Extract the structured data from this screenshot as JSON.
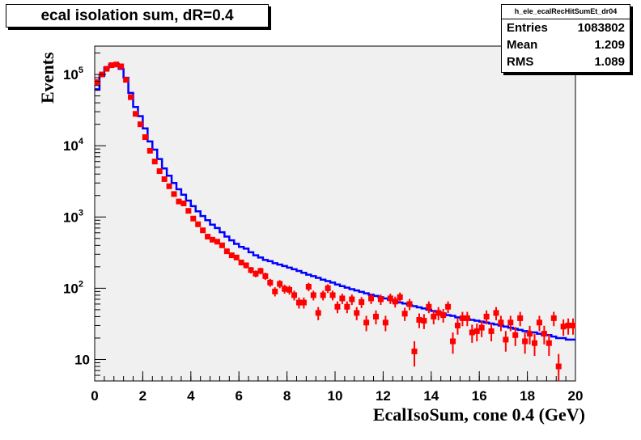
{
  "title": "ecal isolation sum, dR=0.4",
  "stats": {
    "name": "h_ele_ecalRecHitSumEt_dr04",
    "rows": [
      {
        "label": "Entries",
        "value": "1083802"
      },
      {
        "label": "Mean",
        "value": "1.209"
      },
      {
        "label": "RMS",
        "value": "1.089"
      }
    ]
  },
  "colors": {
    "plot_bg": "#f0f0f0",
    "reference": "#0000ff",
    "data": "#ff0000"
  },
  "chart_data": {
    "type": "line",
    "xlabel": "EcalIsoSum, cone 0.4 (GeV)",
    "ylabel": "Events",
    "xlim": [
      0,
      20
    ],
    "ylim": [
      5,
      250000
    ],
    "log_y": true,
    "grid": false,
    "x_tick_labels": [
      "0",
      "2",
      "4",
      "6",
      "8",
      "10",
      "12",
      "14",
      "16",
      "18",
      "20"
    ],
    "y_tick_labels": [
      {
        "base": "10",
        "exp": "",
        "value": 10
      },
      {
        "base": "10",
        "exp": "2",
        "value": 100
      },
      {
        "base": "10",
        "exp": "3",
        "value": 1000
      },
      {
        "base": "10",
        "exp": "4",
        "value": 10000
      },
      {
        "base": "10",
        "exp": "5",
        "value": 100000
      }
    ],
    "bin_width": 0.2,
    "series": [
      {
        "style": "step",
        "values": [
          62000,
          95000,
          125000,
          138000,
          140000,
          120000,
          90000,
          55000,
          35000,
          26000,
          17500,
          11500,
          8800,
          6500,
          4800,
          3800,
          3000,
          2450,
          2050,
          1700,
          1420,
          1200,
          1030,
          900,
          780,
          700,
          610,
          530,
          470,
          420,
          380,
          360,
          320,
          290,
          270,
          250,
          240,
          225,
          215,
          205,
          195,
          185,
          175,
          165,
          155,
          148,
          140,
          132,
          126,
          120,
          113,
          107,
          102,
          97,
          93,
          89,
          85,
          81,
          78,
          75,
          72,
          69,
          66,
          63,
          61,
          58,
          56,
          54,
          52,
          50,
          48,
          46,
          44,
          42,
          41,
          39,
          38,
          37,
          36,
          35,
          34,
          33,
          32,
          31,
          30,
          29,
          28,
          27,
          26,
          25,
          24,
          24,
          23,
          22,
          22,
          21,
          20,
          20,
          19,
          19
        ]
      },
      {
        "style": "points",
        "values": [
          78000,
          100000,
          120000,
          135000,
          138000,
          130000,
          84000,
          48000,
          28000,
          20000,
          13200,
          8500,
          6000,
          4400,
          3400,
          2700,
          2100,
          1650,
          1550,
          1220,
          950,
          790,
          650,
          530,
          480,
          450,
          400,
          330,
          290,
          270,
          230,
          210,
          180,
          160,
          175,
          148,
          120,
          90,
          115,
          98,
          95,
          80,
          63,
          63,
          105,
          80,
          45,
          80,
          100,
          80,
          55,
          72,
          55,
          70,
          45,
          64,
          33,
          72,
          40,
          70,
          33,
          72,
          65,
          75,
          44,
          60,
          13,
          36,
          35,
          55,
          40,
          45,
          42,
          55,
          18,
          30,
          38,
          38,
          24,
          25,
          28,
          40,
          25,
          45,
          33,
          19,
          33,
          22,
          38,
          18,
          23,
          17,
          33,
          23,
          17,
          38,
          8,
          29,
          30,
          30
        ]
      }
    ]
  }
}
